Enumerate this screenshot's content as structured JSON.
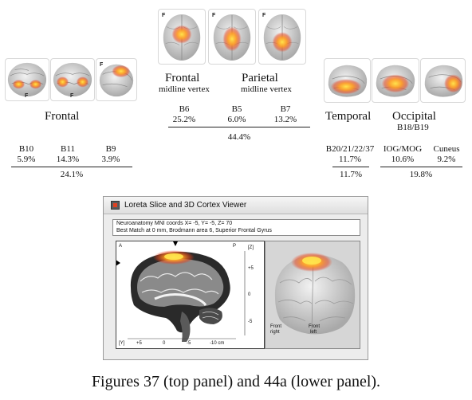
{
  "figure": {
    "caption": "Figures 37 (top panel) and 44a (lower panel).",
    "brain_orientation_letter": "F"
  },
  "frontal_group": {
    "title": "Frontal",
    "areas": [
      {
        "label": "B10",
        "percent": "5.9%"
      },
      {
        "label": "B11",
        "percent": "14.3%"
      },
      {
        "label": "B9",
        "percent": "3.9%"
      }
    ],
    "total": "24.1%"
  },
  "midline_group": {
    "frontal_title": "Frontal",
    "frontal_subtitle": "midline vertex",
    "parietal_title": "Parietal",
    "parietal_subtitle": "midline vertex",
    "areas": [
      {
        "label": "B6",
        "percent": "25.2%"
      },
      {
        "label": "B5",
        "percent": "6.0%"
      },
      {
        "label": "B7",
        "percent": "13.2%"
      }
    ],
    "total": "44.4%"
  },
  "temporal_occipital_group": {
    "temporal_title": "Temporal",
    "occipital_title": "Occipital",
    "occipital_subtitle": "B18/B19",
    "areas": [
      {
        "label": "B20/21/22/37",
        "percent": "11.7%"
      },
      {
        "label": "IOG/MOG",
        "percent": "10.6%"
      },
      {
        "label": "Cuneus",
        "percent": "9.2%"
      }
    ],
    "temporal_total": "11.7%",
    "occipital_total": "19.8%"
  },
  "viewer": {
    "window_title": "Loreta Slice and 3D Cortex Viewer",
    "coords_line": "Neuroanatomy MNI coords X= -5, Y= -5, Z= 70",
    "match_line": "Best Match at 0 mm, Brodmann area 6, Superior Frontal Gyrus",
    "slice": {
      "label_a": "A",
      "label_p": "P",
      "z_axis_label": "[Z]",
      "y_axis_label": "[Y]",
      "z_ticks": [
        "+5",
        "0",
        "-5"
      ],
      "y_ticks": [
        "+5",
        "0",
        "-5",
        "-10 cm"
      ]
    },
    "cortex": {
      "label_front_right": [
        "Front",
        "right"
      ],
      "label_front_left": [
        "Front",
        "left"
      ]
    }
  },
  "colors": {
    "activation_hot": "#ffd633",
    "activation_mid": "#ff8a1a",
    "activation_low": "#e8421a",
    "brain_gray": "#cfcfcf",
    "viewer_bg": "#ececec"
  }
}
